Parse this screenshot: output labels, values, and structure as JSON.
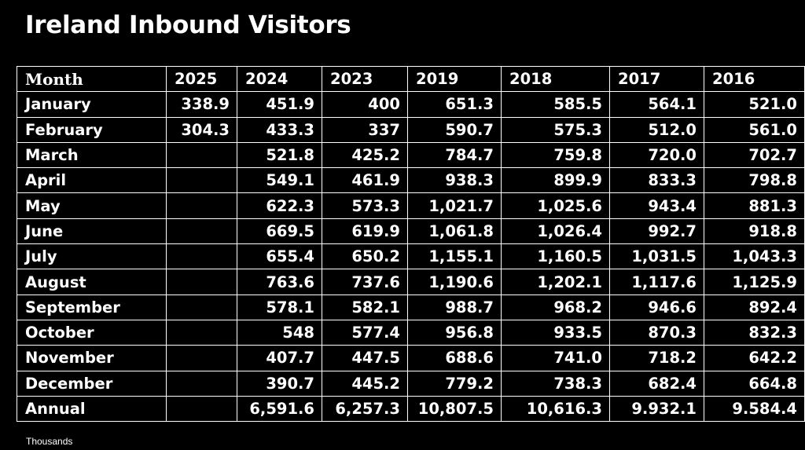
{
  "title": "Ireland Inbound Visitors",
  "units_note": "Thousands",
  "colors": {
    "background": "#000000",
    "text": "#ffffff",
    "grid": "#ffffff"
  },
  "chart_data": {
    "type": "table",
    "title": "Ireland Inbound Visitors",
    "columns": [
      "Month",
      "2025",
      "2024",
      "2023",
      "2019",
      "2018",
      "2017",
      "2016"
    ],
    "rows": [
      [
        "January",
        "338.9",
        "451.9",
        "400",
        "651.3",
        "585.5",
        "564.1",
        "521.0"
      ],
      [
        "February",
        "304.3",
        "433.3",
        "337",
        "590.7",
        "575.3",
        "512.0",
        "561.0"
      ],
      [
        "March",
        "",
        "521.8",
        "425.2",
        "784.7",
        "759.8",
        "720.0",
        "702.7"
      ],
      [
        "April",
        "",
        "549.1",
        "461.9",
        "938.3",
        "899.9",
        "833.3",
        "798.8"
      ],
      [
        "May",
        "",
        "622.3",
        "573.3",
        "1,021.7",
        "1,025.6",
        "943.4",
        "881.3"
      ],
      [
        "June",
        "",
        "669.5",
        "619.9",
        "1,061.8",
        "1,026.4",
        "992.7",
        "918.8"
      ],
      [
        "July",
        "",
        "655.4",
        "650.2",
        "1,155.1",
        "1,160.5",
        "1,031.5",
        "1,043.3"
      ],
      [
        "August",
        "",
        "763.6",
        "737.6",
        "1,190.6",
        "1,202.1",
        "1,117.6",
        "1,125.9"
      ],
      [
        "September",
        "",
        "578.1",
        "582.1",
        "988.7",
        "968.2",
        "946.6",
        "892.4"
      ],
      [
        "October",
        "",
        "548",
        "577.4",
        "956.8",
        "933.5",
        "870.3",
        "832.3"
      ],
      [
        "November",
        "",
        "407.7",
        "447.5",
        "688.6",
        "741.0",
        "718.2",
        "642.2"
      ],
      [
        "December",
        "",
        "390.7",
        "445.2",
        "779.2",
        "738.3",
        "682.4",
        "664.8"
      ],
      [
        "Annual",
        "",
        "6,591.6",
        "6,257.3",
        "10,807.5",
        "10,616.3",
        "9.932.1",
        "9.584.4"
      ]
    ]
  }
}
